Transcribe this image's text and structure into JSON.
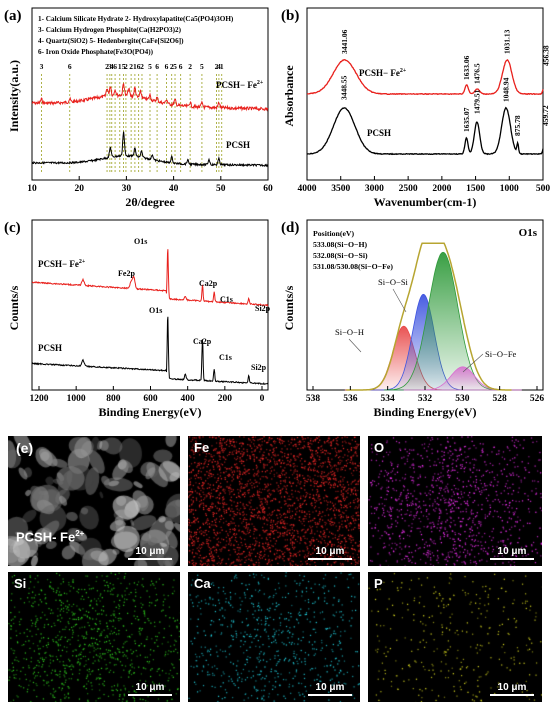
{
  "chart_data": [
    {
      "panel": "(a)",
      "type": "line",
      "xlabel": "2θ/degree",
      "ylabel": "Intensity(a.u.)",
      "xlim": [
        10,
        60
      ],
      "xticks": [
        "10",
        "20",
        "30",
        "40",
        "50",
        "60"
      ],
      "legend_lines": [
        "1- Calcium Silicate Hydrate   2- Hydroxylapatite(Ca5(PO4)3OH)",
        "3- Calcium Hydrogen Phosphite(Ca(H2PO3)2)",
        "4- Quartz(SiO2)   5- Hedenbergite(CaFe[Si2O6])",
        "6- Iron Oxide Phosphate(Fe3O(PO4))"
      ],
      "series": [
        {
          "name": "PCSH- Fe2+",
          "color": "#e8201c"
        },
        {
          "name": "PCSH",
          "color": "#000000"
        }
      ],
      "peak_markers": [
        {
          "x": 12.0,
          "label": "3"
        },
        {
          "x": 18.0,
          "label": "6"
        },
        {
          "x": 25.9,
          "label": "2"
        },
        {
          "x": 26.5,
          "label": "3"
        },
        {
          "x": 26.9,
          "label": "4"
        },
        {
          "x": 27.6,
          "label": "6"
        },
        {
          "x": 28.6,
          "label": "1"
        },
        {
          "x": 29.4,
          "label": "5"
        },
        {
          "x": 29.9,
          "label": "2"
        },
        {
          "x": 31.0,
          "label": "2"
        },
        {
          "x": 31.8,
          "label": "1"
        },
        {
          "x": 32.6,
          "label": "6"
        },
        {
          "x": 33.3,
          "label": "2"
        },
        {
          "x": 35.0,
          "label": "5"
        },
        {
          "x": 36.5,
          "label": "6"
        },
        {
          "x": 38.5,
          "label": "6"
        },
        {
          "x": 39.6,
          "label": "2"
        },
        {
          "x": 40.3,
          "label": "5"
        },
        {
          "x": 41.5,
          "label": "6"
        },
        {
          "x": 43.5,
          "label": "2"
        },
        {
          "x": 46.0,
          "label": "5"
        },
        {
          "x": 49.1,
          "label": "2"
        },
        {
          "x": 49.6,
          "label": "4"
        },
        {
          "x": 50.2,
          "label": "1"
        }
      ]
    },
    {
      "panel": "(b)",
      "type": "line",
      "xlabel": "Wavenumber(cm-1)",
      "ylabel": "Absorbance",
      "xlim": [
        4000,
        500
      ],
      "xticks": [
        "4000",
        "3500",
        "3000",
        "2500",
        "2000",
        "1500",
        "1000",
        "500"
      ],
      "series": [
        {
          "name": "PCSH- Fe2+",
          "color": "#e8201c"
        },
        {
          "name": "PCSH",
          "color": "#000000"
        }
      ],
      "peak_labels": [
        {
          "series": "PCSH- Fe2+",
          "x": 3441.06,
          "label": "3441.06"
        },
        {
          "series": "PCSH- Fe2+",
          "x": 1633.06,
          "label": "1633.06"
        },
        {
          "series": "PCSH- Fe2+",
          "x": 1476.5,
          "label": "1476.5"
        },
        {
          "series": "PCSH- Fe2+",
          "x": 1031.13,
          "label": "1031.13"
        },
        {
          "series": "PCSH- Fe2+",
          "x": 456.38,
          "label": "456.38"
        },
        {
          "series": "PCSH",
          "x": 3448.55,
          "label": "3448.55"
        },
        {
          "series": "PCSH",
          "x": 1635.07,
          "label": "1635.07"
        },
        {
          "series": "PCSH",
          "x": 1479.51,
          "label": "1479.51"
        },
        {
          "series": "PCSH",
          "x": 1048.94,
          "label": "1048.94"
        },
        {
          "series": "PCSH",
          "x": 875.78,
          "label": "875.78"
        },
        {
          "series": "PCSH",
          "x": 459.72,
          "label": "459.72"
        }
      ]
    },
    {
      "panel": "(c)",
      "type": "line",
      "xlabel": "Binding Energy(eV)",
      "ylabel": "Counts/s",
      "xlim": [
        1250,
        0
      ],
      "xticks": [
        "1200",
        "1000",
        "800",
        "600",
        "400",
        "200",
        "0"
      ],
      "series": [
        {
          "name": "PCSH- Fe2+",
          "color": "#e8201c"
        },
        {
          "name": "PCSH",
          "color": "#000000"
        }
      ],
      "peak_labels": [
        {
          "series": "PCSH- Fe2+",
          "x": 531,
          "label": "O1s"
        },
        {
          "series": "PCSH- Fe2+",
          "x": 711,
          "label": "Fe2p"
        },
        {
          "series": "PCSH- Fe2+",
          "x": 347,
          "label": "Ca2p"
        },
        {
          "series": "PCSH- Fe2+",
          "x": 285,
          "label": "C1s"
        },
        {
          "series": "PCSH- Fe2+",
          "x": 102,
          "label": "Si2p"
        },
        {
          "series": "PCSH",
          "x": 531,
          "label": "O1s"
        },
        {
          "series": "PCSH",
          "x": 347,
          "label": "Ca2p"
        },
        {
          "series": "PCSH",
          "x": 285,
          "label": "C1s"
        },
        {
          "series": "PCSH",
          "x": 102,
          "label": "Si2p"
        }
      ]
    },
    {
      "panel": "(d)",
      "type": "area",
      "xlabel": "Binding Energy(eV)",
      "ylabel": "Counts/s",
      "xlim": [
        538,
        526
      ],
      "xticks": [
        "538",
        "536",
        "534",
        "532",
        "530",
        "528",
        "526"
      ],
      "corner_label": "O1s",
      "legend_lines": [
        "Position(eV)",
        "533.08(Si−O−H)",
        "532.08(Si−O−Si)",
        "531.08/530.08(Si−O−Fe)"
      ],
      "components": [
        {
          "name": "Si−O−H",
          "center": 533.08,
          "height": 0.44,
          "color": "#e84a4a"
        },
        {
          "name": "Si−O−Si",
          "center": 532.08,
          "height": 0.66,
          "color": "#3f55e0"
        },
        {
          "name": "Si−O−Fe",
          "center": 531.08,
          "height": 0.95,
          "color": "#2f9a3a"
        },
        {
          "name": "Si−O−Fe",
          "center": 530.08,
          "height": 0.16,
          "color": "#d86fd0"
        }
      ],
      "envelope_color": "#b7a531"
    }
  ],
  "panel_letters": {
    "a": "(a)",
    "b": "(b)",
    "c": "(c)",
    "d": "(d)",
    "e": "(e)"
  },
  "series_labels": {
    "fe": "PCSH− Fe",
    "fe_sup": "2+",
    "plain": "PCSH"
  },
  "em_tiles": [
    {
      "id": "sem",
      "label": "",
      "color": "#cfcfcf",
      "scale": "10 μm"
    },
    {
      "id": "fe",
      "label": "Fe",
      "color": "#ff2a2a",
      "scale": "10 μm"
    },
    {
      "id": "o",
      "label": "O",
      "color": "#ff33ff",
      "scale": "10 μm"
    },
    {
      "id": "si",
      "label": "Si",
      "color": "#33dd22",
      "scale": "10 μm"
    },
    {
      "id": "ca",
      "label": "Ca",
      "color": "#22d8e8",
      "scale": "10 μm"
    },
    {
      "id": "p",
      "label": "P",
      "color": "#e6e622",
      "scale": "10 μm"
    }
  ],
  "em_sample_tag": "PCSH- Fe",
  "em_sample_tag_sup": "2+"
}
